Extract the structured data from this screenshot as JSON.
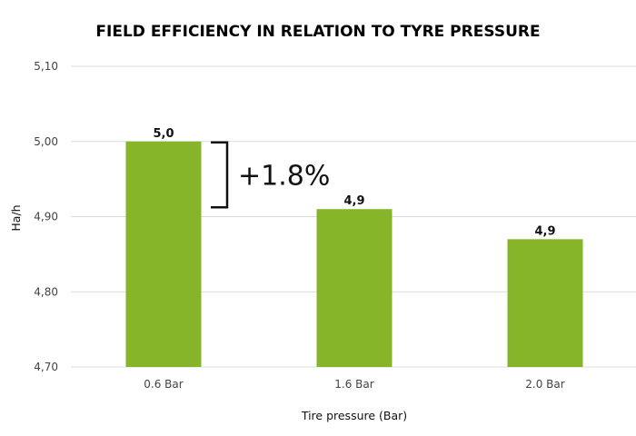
{
  "chart_data": {
    "type": "bar",
    "title": "FIELD EFFICIENCY IN RELATION TO TYRE PRESSURE",
    "xlabel": "Tire pressure (Bar)",
    "ylabel": "Ha/h",
    "categories": [
      "0.6 Bar",
      "1.6 Bar",
      "2.0 Bar"
    ],
    "values": [
      5.0,
      4.91,
      4.87
    ],
    "data_labels": [
      "5,0",
      "4,9",
      "4,9"
    ],
    "ylim": [
      4.7,
      5.1
    ],
    "yticks": [
      4.7,
      4.8,
      4.9,
      5.0,
      5.1
    ],
    "ytick_labels": [
      "4,70",
      "4,80",
      "4,90",
      "5,00",
      "5,10"
    ],
    "grid": true,
    "bar_color": "#86b52a",
    "annotation": {
      "text": "+1.8%",
      "from": 5.0,
      "to": 4.91
    }
  }
}
